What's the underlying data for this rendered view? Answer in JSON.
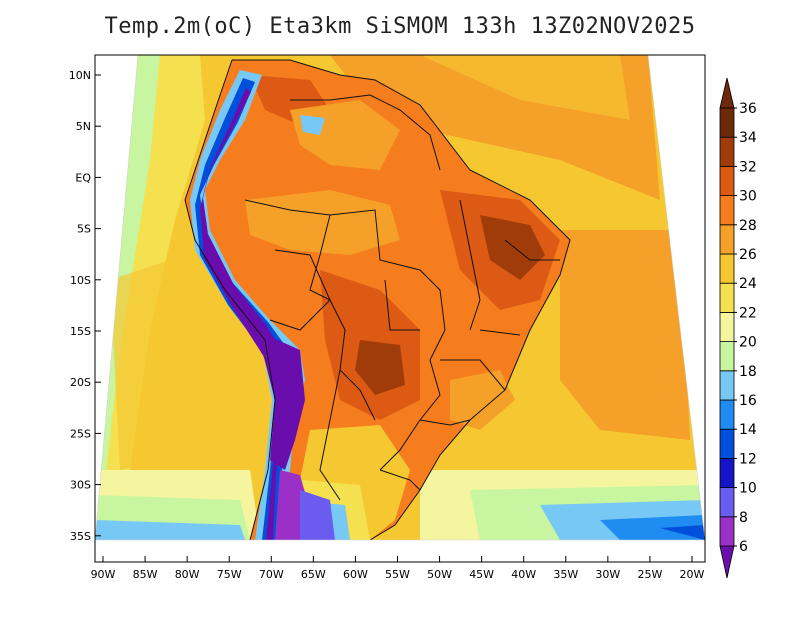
{
  "title": "Temp.2m(oC) Eta3km SiSMOM 133h 13Z02NOV2025",
  "lat_labels": [
    "10N",
    "5N",
    "EQ",
    "5S",
    "10S",
    "15S",
    "20S",
    "25S",
    "30S",
    "35S"
  ],
  "lon_labels": [
    "90W",
    "85W",
    "80W",
    "75W",
    "70W",
    "65W",
    "60W",
    "55W",
    "50W",
    "45W",
    "40W",
    "35W",
    "30W",
    "25W",
    "20W"
  ],
  "colorbar": {
    "labels": [
      "6",
      "8",
      "10",
      "12",
      "14",
      "16",
      "18",
      "20",
      "22",
      "24",
      "26",
      "28",
      "30",
      "32",
      "34",
      "36"
    ],
    "colors": [
      "#6a0dad",
      "#9b30c8",
      "#6b5cf0",
      "#1414c8",
      "#0050dc",
      "#1e8cf0",
      "#78c8f5",
      "#c8f5a0",
      "#f5f5a0",
      "#f5e150",
      "#f5c832",
      "#f5a028",
      "#f57d1e",
      "#dc5a14",
      "#a03c0a",
      "#6e280a"
    ]
  }
}
